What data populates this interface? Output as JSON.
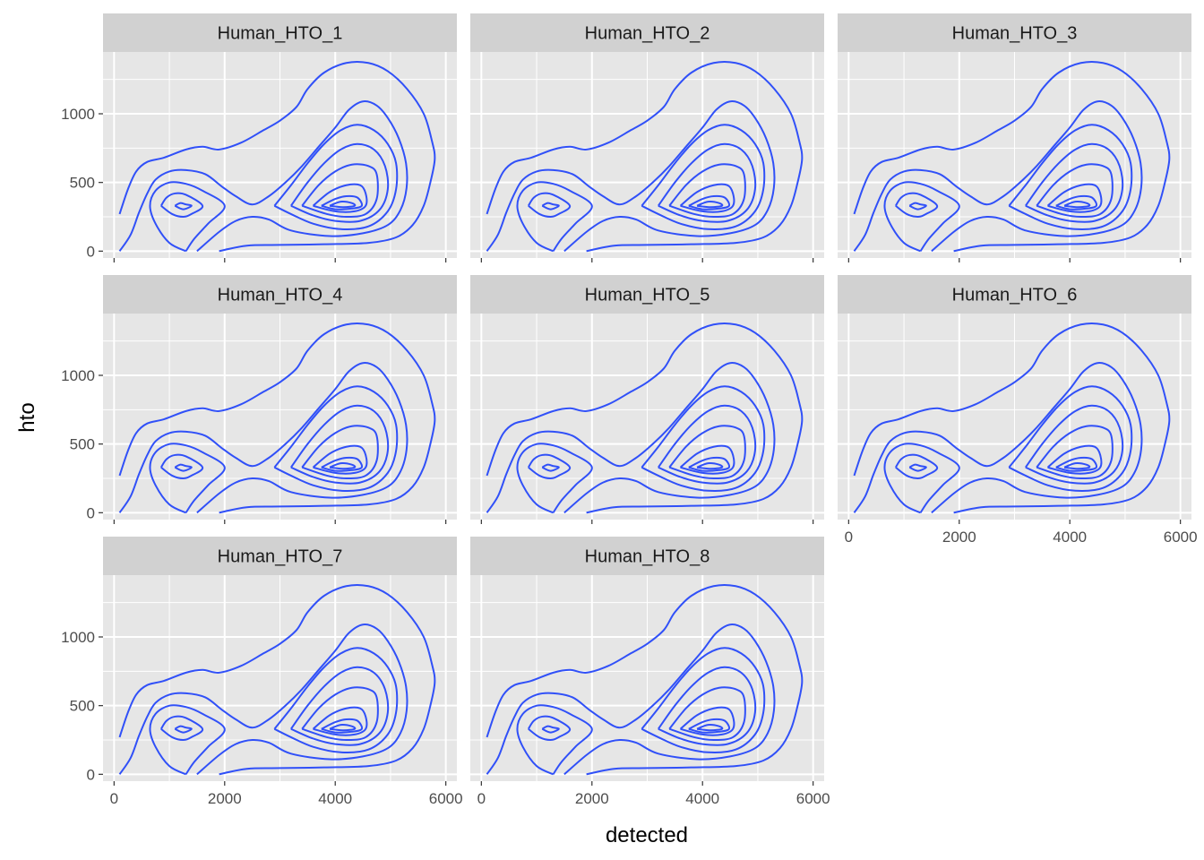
{
  "chart_data": {
    "type": "contour",
    "xlabel": "detected",
    "ylabel": "hto",
    "xlim": [
      -200,
      6200
    ],
    "ylim": [
      -50,
      1450
    ],
    "x_ticks": [
      0,
      2000,
      4000,
      6000
    ],
    "x_tick_labels": [
      "0",
      "2000",
      "4000",
      "6000"
    ],
    "y_ticks": [
      0,
      500,
      1000
    ],
    "y_tick_labels": [
      "0",
      "500",
      "1000"
    ],
    "grid": true,
    "line_color": "#3050f8",
    "panel_background": "#e6e6e6",
    "strip_background": "#d1d1d1",
    "panels": [
      {
        "label": "Human_HTO_1"
      },
      {
        "label": "Human_HTO_2"
      },
      {
        "label": "Human_HTO_3"
      },
      {
        "label": "Human_HTO_4"
      },
      {
        "label": "Human_HTO_5"
      },
      {
        "label": "Human_HTO_6"
      },
      {
        "label": "Human_HTO_7"
      },
      {
        "label": "Human_HTO_8"
      }
    ],
    "contours": [
      {
        "name": "level-1",
        "points": [
          [
            100,
            270
          ],
          [
            250,
            450
          ],
          [
            400,
            580
          ],
          [
            600,
            650
          ],
          [
            900,
            680
          ],
          [
            1300,
            740
          ],
          [
            1600,
            760
          ],
          [
            1900,
            740
          ],
          [
            2300,
            790
          ],
          [
            2700,
            880
          ],
          [
            3000,
            950
          ],
          [
            3300,
            1050
          ],
          [
            3500,
            1180
          ],
          [
            3800,
            1300
          ],
          [
            4200,
            1370
          ],
          [
            4600,
            1370
          ],
          [
            4950,
            1310
          ],
          [
            5300,
            1180
          ],
          [
            5600,
            1000
          ],
          [
            5750,
            800
          ],
          [
            5800,
            670
          ],
          [
            5720,
            500
          ],
          [
            5600,
            330
          ],
          [
            5400,
            190
          ],
          [
            5100,
            100
          ],
          [
            4600,
            60
          ],
          [
            3800,
            50
          ],
          [
            3000,
            45
          ],
          [
            2400,
            40
          ],
          [
            1900,
            0
          ]
        ]
      },
      {
        "name": "level-2",
        "points": [
          [
            100,
            0
          ],
          [
            300,
            120
          ],
          [
            450,
            280
          ],
          [
            600,
            420
          ],
          [
            750,
            520
          ],
          [
            1000,
            580
          ],
          [
            1300,
            590
          ],
          [
            1650,
            560
          ],
          [
            1950,
            470
          ],
          [
            2200,
            400
          ],
          [
            2500,
            340
          ],
          [
            2800,
            400
          ],
          [
            3100,
            500
          ],
          [
            3400,
            620
          ],
          [
            3700,
            760
          ],
          [
            4000,
            900
          ],
          [
            4250,
            1030
          ],
          [
            4500,
            1090
          ],
          [
            4750,
            1060
          ],
          [
            4950,
            970
          ],
          [
            5150,
            820
          ],
          [
            5280,
            640
          ],
          [
            5290,
            460
          ],
          [
            5180,
            300
          ],
          [
            4950,
            190
          ],
          [
            4500,
            130
          ],
          [
            3900,
            110
          ],
          [
            3200,
            150
          ],
          [
            2800,
            230
          ],
          [
            2500,
            250
          ],
          [
            2200,
            220
          ],
          [
            1900,
            140
          ],
          [
            1500,
            0
          ]
        ]
      },
      {
        "name": "level-3",
        "points": [
          [
            1300,
            0
          ],
          [
            1000,
            60
          ],
          [
            750,
            200
          ],
          [
            650,
            330
          ],
          [
            750,
            440
          ],
          [
            1000,
            500
          ],
          [
            1300,
            490
          ],
          [
            1600,
            440
          ],
          [
            2000,
            330
          ],
          [
            1700,
            200
          ],
          [
            1450,
            90
          ],
          [
            1300,
            0
          ]
        ]
      },
      {
        "name": "level-4",
        "points": [
          [
            850,
            330
          ],
          [
            950,
            390
          ],
          [
            1100,
            420
          ],
          [
            1300,
            410
          ],
          [
            1600,
            330
          ],
          [
            1400,
            270
          ],
          [
            1250,
            250
          ],
          [
            1050,
            270
          ],
          [
            850,
            330
          ]
        ]
      },
      {
        "name": "level-5",
        "points": [
          [
            1100,
            330
          ],
          [
            1200,
            350
          ],
          [
            1300,
            340
          ],
          [
            1400,
            330
          ],
          [
            1250,
            305
          ],
          [
            1100,
            330
          ]
        ]
      },
      {
        "name": "level-6",
        "points": [
          [
            2900,
            330
          ],
          [
            3200,
            480
          ],
          [
            3500,
            640
          ],
          [
            3800,
            780
          ],
          [
            4100,
            880
          ],
          [
            4400,
            920
          ],
          [
            4700,
            880
          ],
          [
            4950,
            780
          ],
          [
            5100,
            640
          ],
          [
            5100,
            450
          ],
          [
            4950,
            290
          ],
          [
            4600,
            180
          ],
          [
            4100,
            160
          ],
          [
            3600,
            200
          ],
          [
            3200,
            270
          ],
          [
            2900,
            330
          ]
        ]
      },
      {
        "name": "level-7",
        "points": [
          [
            3200,
            330
          ],
          [
            3500,
            500
          ],
          [
            3800,
            640
          ],
          [
            4100,
            740
          ],
          [
            4400,
            780
          ],
          [
            4700,
            740
          ],
          [
            4900,
            620
          ],
          [
            4950,
            450
          ],
          [
            4800,
            300
          ],
          [
            4450,
            220
          ],
          [
            4000,
            220
          ],
          [
            3600,
            260
          ],
          [
            3200,
            330
          ]
        ]
      },
      {
        "name": "level-8",
        "points": [
          [
            3400,
            330
          ],
          [
            3700,
            480
          ],
          [
            4000,
            580
          ],
          [
            4300,
            630
          ],
          [
            4600,
            620
          ],
          [
            4750,
            560
          ],
          [
            4750,
            380
          ],
          [
            4550,
            270
          ],
          [
            4200,
            250
          ],
          [
            3850,
            270
          ],
          [
            3400,
            330
          ]
        ]
      },
      {
        "name": "level-9",
        "points": [
          [
            3600,
            330
          ],
          [
            3900,
            430
          ],
          [
            4200,
            480
          ],
          [
            4450,
            480
          ],
          [
            4550,
            420
          ],
          [
            4550,
            330
          ],
          [
            4350,
            290
          ],
          [
            4000,
            290
          ],
          [
            3600,
            330
          ]
        ]
      },
      {
        "name": "level-10",
        "points": [
          [
            3750,
            330
          ],
          [
            4000,
            380
          ],
          [
            4200,
            400
          ],
          [
            4400,
            390
          ],
          [
            4480,
            330
          ],
          [
            4300,
            310
          ],
          [
            4000,
            305
          ],
          [
            3750,
            330
          ]
        ]
      },
      {
        "name": "level-11",
        "points": [
          [
            3900,
            330
          ],
          [
            4100,
            360
          ],
          [
            4300,
            350
          ],
          [
            4350,
            330
          ],
          [
            4150,
            320
          ],
          [
            3900,
            330
          ]
        ]
      }
    ]
  }
}
